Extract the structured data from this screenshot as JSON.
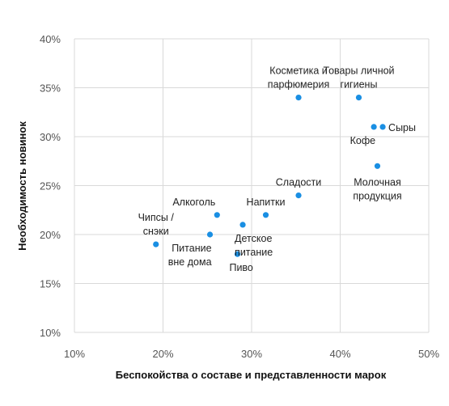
{
  "chart_data": {
    "type": "scatter",
    "title": "",
    "xlabel": "Беспокойства о составе и представленности марок",
    "ylabel": "Необходимость новинок",
    "xlim": [
      10,
      50
    ],
    "ylim": [
      10,
      40
    ],
    "x_ticks": [
      "10%",
      "20%",
      "30%",
      "40%",
      "50%"
    ],
    "y_ticks": [
      "10%",
      "15%",
      "20%",
      "25%",
      "30%",
      "35%",
      "40%"
    ],
    "grid": true,
    "point_color": "#1a8fe3",
    "points": [
      {
        "label": [
          "Косметика и",
          "парфюмерия"
        ],
        "x": 35.3,
        "y": 34,
        "label_pos": "above"
      },
      {
        "label": [
          "Товары личной",
          "гигиены"
        ],
        "x": 42.1,
        "y": 34,
        "label_pos": "above"
      },
      {
        "label": [
          "Кофе"
        ],
        "x": 43.8,
        "y": 31,
        "label_pos": "below-left"
      },
      {
        "label": [
          "Сыры"
        ],
        "x": 44.8,
        "y": 31,
        "label_pos": "right"
      },
      {
        "label": [
          "Молочная",
          "продукция"
        ],
        "x": 44.2,
        "y": 27,
        "label_pos": "below"
      },
      {
        "label": [
          "Сладости"
        ],
        "x": 35.3,
        "y": 24,
        "label_pos": "above"
      },
      {
        "label": [
          "Напитки"
        ],
        "x": 31.6,
        "y": 22,
        "label_pos": "above"
      },
      {
        "label": [
          "Алкоголь"
        ],
        "x": 26.1,
        "y": 22,
        "label_pos": "above-left"
      },
      {
        "label": [
          "Детское",
          "питание"
        ],
        "x": 29.0,
        "y": 21,
        "label_pos": "below-right"
      },
      {
        "label": [
          "Чипсы /",
          "снэки"
        ],
        "x": 19.2,
        "y": 19,
        "label_pos": "above"
      },
      {
        "label": [
          "Питание",
          "вне дома"
        ],
        "x": 25.3,
        "y": 20,
        "label_pos": "below-left"
      },
      {
        "label": [
          "Пиво"
        ],
        "x": 28.4,
        "y": 18,
        "label_pos": "below-right"
      }
    ]
  }
}
